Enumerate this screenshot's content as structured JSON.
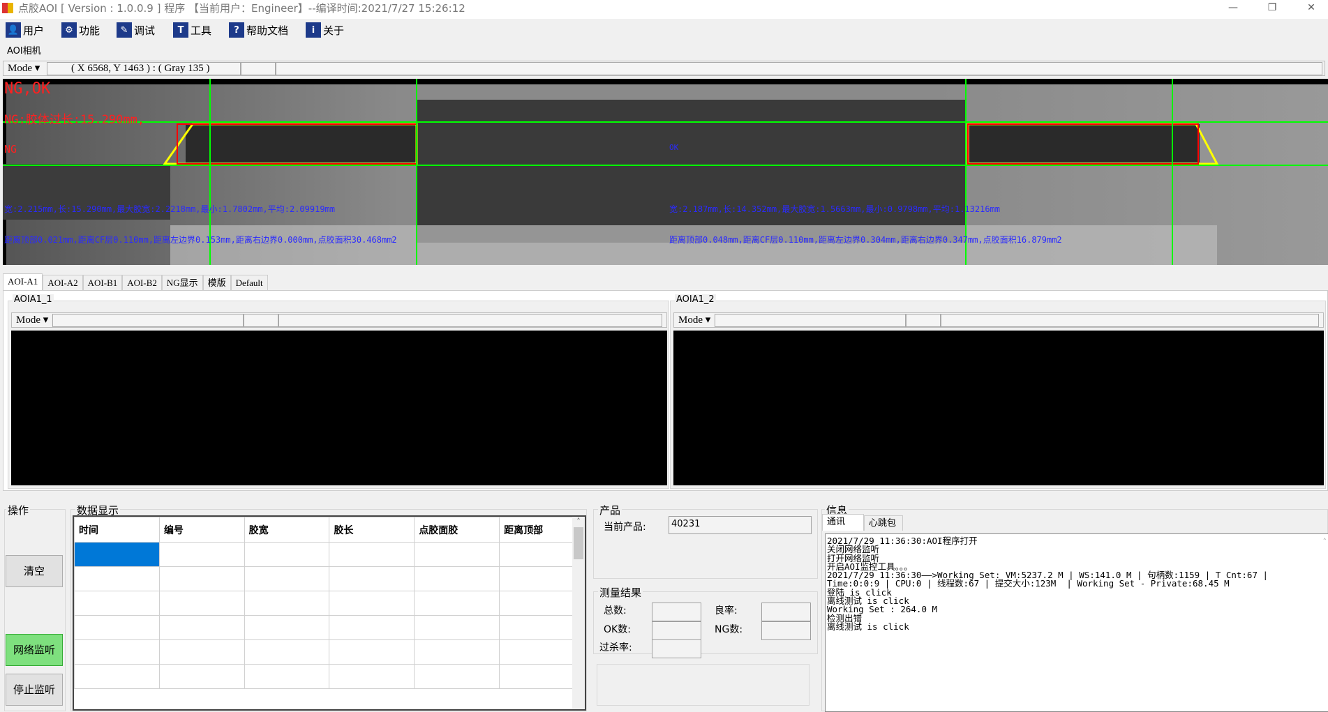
{
  "window": {
    "title": "点胶AOI [ Version : 1.0.0.9 ]  程序 【当前用户：Engineer】--编译时间:2021/7/27 15:26:12",
    "min": "—",
    "restore": "❐",
    "close": "✕"
  },
  "toolbar": [
    {
      "label": "用户",
      "icon": "user-icon",
      "glyph": "👤"
    },
    {
      "label": "功能",
      "icon": "gear-icon",
      "glyph": "⚙"
    },
    {
      "label": "调试",
      "icon": "debug-icon",
      "glyph": "✎"
    },
    {
      "label": "工具",
      "icon": "hammer-icon",
      "glyph": "T"
    },
    {
      "label": "帮助文档",
      "icon": "help-icon",
      "glyph": "?"
    },
    {
      "label": "关于",
      "icon": "info-icon",
      "glyph": "i"
    }
  ],
  "camera": {
    "label": "AOI相机",
    "mode": "Mode ▾",
    "coord": "( X 6568, Y 1463 ) : ( Gray 135 )"
  },
  "image_overlay": {
    "result": "NG,OK",
    "ng_reason": "NG:胶体过长:15.290mm,",
    "left_status": "NG",
    "right_status": "OK",
    "left_line1": "宽:2.215mm,长:15.290mm,最大胶宽:2.2218mm,最小:1.7802mm,平均:2.09919mm",
    "left_line2": "距离顶部0.021mm,距离CF层0.110mm,距离左边界0.153mm,距离右边界0.000mm,点胶面积30.468mm2",
    "right_line1": "宽:2.187mm,长:14.352mm,最大胶宽:1.5663mm,最小:0.9798mm,平均:1.13216mm",
    "right_line2": "距离顶部0.048mm,距离CF层0.110mm,距离左边界0.304mm,距离右边界0.347mm,点胶面积16.879mm2",
    "colors": {
      "ng": "#ff2020",
      "measure": "#2a2aff",
      "roi": "#00ff00",
      "glue_box": "#ffff00",
      "ng_box": "#ff0000"
    }
  },
  "tabs": [
    "AOI-A1",
    "AOI-A2",
    "AOI-B1",
    "AOI-B2",
    "NG显示",
    "模版",
    "Default"
  ],
  "active_tab": "AOI-A1",
  "views": [
    {
      "label": "AOIA1_1",
      "mode": "Mode ▾"
    },
    {
      "label": "AOIA1_2",
      "mode": "Mode ▾"
    }
  ],
  "operation": {
    "label": "操作",
    "clear": "清空",
    "monitor": "网络监听",
    "stop": "停止监听",
    "monitor_color": "#7ee07e"
  },
  "data_display": {
    "label": "数据显示",
    "columns": [
      "时间",
      "编号",
      "胶宽",
      "胶长",
      "点胶面胶",
      "距离顶部"
    ],
    "row_count": 6,
    "selected_color": "#0078d7"
  },
  "product": {
    "label": "产品",
    "current_label": "当前产品:",
    "current_value": "40231"
  },
  "measure": {
    "label": "测量结果",
    "total": "总数:",
    "yield": "良率:",
    "ok": "OK数:",
    "ng": "NG数:",
    "overkill": "过杀率:"
  },
  "info": {
    "label": "信息",
    "tabs": [
      "通讯",
      "心跳包"
    ],
    "log": [
      "2021/7/29 11:36:30:AOI程序打开",
      "关闭网络监听",
      "打开网络监听",
      "开启AOI监控工具。。。",
      "2021/7/29 11:36:30——>Working Set: VM:5237.2 M | WS:141.0 M | 句柄数:1159 | T Cnt:67 |",
      "Time:0:0:9 | CPU:0 | 线程数:67 | 提交大小:123M  | Working Set - Private:68.45 M",
      "登陆 is click",
      "离线测试 is click",
      "Working Set : 264.0 M",
      "检测出错",
      "离线测试 is click"
    ]
  }
}
